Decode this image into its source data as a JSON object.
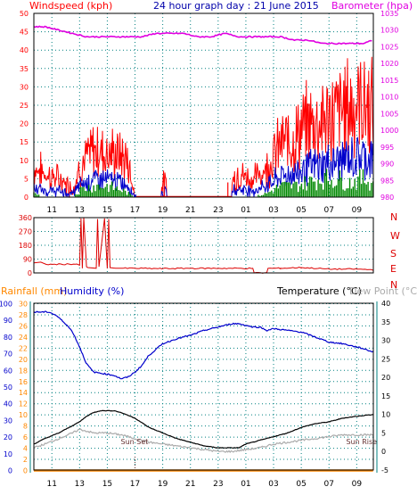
{
  "colors": {
    "wind": "#ff0000",
    "windAvg": "#0000cc",
    "windMin": "#008800",
    "barometer": "#e000e0",
    "direction": "#dd0000",
    "humidity": "#0000cc",
    "temperature": "#000000",
    "dewpoint": "#aaaaaa",
    "rainfall": "#ff8800",
    "axis": "#008080",
    "grid": "#008080",
    "sunText": "#663333"
  },
  "top": {
    "title": "24 hour graph day : 21 June 2015",
    "left_label": "Windspeed (kph)",
    "right_label": "Barometer (hpa)"
  },
  "mid": {
    "compass": [
      "N",
      "W",
      "S",
      "E",
      "N"
    ]
  },
  "bottom": {
    "rain_label": "Rainfall (mm)",
    "hum_label": "Humidity (%)",
    "temp_label": "Temperature (°C)",
    "dew_label": "Dew Point (°C)",
    "sunset": "Sun Set",
    "sunrise": "Sun Rise"
  },
  "chart_data": [
    {
      "type": "line",
      "title": "24 hour graph day : 21 June 2015",
      "x_ticks": [
        "11",
        "13",
        "15",
        "17",
        "19",
        "21",
        "23",
        "01",
        "03",
        "05",
        "07",
        "09"
      ],
      "y_left": {
        "label": "Windspeed (kph)",
        "ticks": [
          0,
          5,
          10,
          15,
          20,
          25,
          30,
          35,
          40,
          45,
          50
        ],
        "range": [
          0,
          50
        ]
      },
      "y_right": {
        "label": "Barometer (hpa)",
        "ticks": [
          980,
          985,
          990,
          995,
          1000,
          1005,
          1010,
          1015,
          1020,
          1025,
          1030,
          1035
        ],
        "range": [
          980,
          1035
        ]
      },
      "grid": true,
      "series": [
        {
          "name": "Barometer (hpa)",
          "axis": "right",
          "x": [
            9.7,
            10.5,
            11.5,
            12.5,
            13.5,
            14.5,
            15.5,
            16.5,
            17.5,
            18.5,
            19.5,
            20.5,
            21.5,
            22.5,
            23.5,
            24.5,
            25.5,
            26.5,
            27.5,
            28.5,
            29.5,
            30.5,
            31.5,
            32.5,
            33.5,
            34.2
          ],
          "values": [
            1031,
            1031,
            1030,
            1029,
            1028,
            1028,
            1028,
            1028,
            1028,
            1029,
            1029,
            1029,
            1028,
            1028,
            1029,
            1028,
            1028,
            1028,
            1028,
            1027,
            1027,
            1026,
            1026,
            1026,
            1026,
            1027
          ]
        },
        {
          "name": "Windspeed gust",
          "axis": "left",
          "x": [
            9.7,
            10.5,
            11.5,
            12.5,
            13.0,
            14.0,
            15.0,
            16.0,
            16.5,
            17.0,
            19.0,
            20.0,
            22.0,
            23.5,
            24.5,
            25.5,
            26.5,
            27.5,
            28.5,
            29.5,
            30.5,
            31.5,
            32.5,
            33.5,
            34.2
          ],
          "values": [
            10,
            8,
            6,
            3,
            10,
            16,
            15,
            14,
            12,
            0,
            5,
            0,
            0,
            3,
            8,
            6,
            10,
            18,
            20,
            25,
            26,
            28,
            31,
            32,
            30
          ]
        },
        {
          "name": "Windspeed average",
          "axis": "left",
          "x": [
            9.7,
            10.5,
            11.5,
            12.5,
            13.0,
            14.0,
            15.0,
            16.0,
            16.5,
            17.0,
            19.0,
            20.0,
            22.0,
            23.5,
            24.5,
            25.5,
            26.5,
            27.5,
            28.5,
            29.5,
            30.5,
            31.5,
            32.5,
            33.5,
            34.2
          ],
          "values": [
            3,
            2,
            2,
            1,
            4,
            6,
            6,
            5,
            4,
            0,
            2,
            0,
            0,
            1,
            3,
            2,
            4,
            7,
            8,
            10,
            11,
            12,
            13,
            14,
            13
          ]
        },
        {
          "name": "Windspeed minimum",
          "axis": "left",
          "x": [
            9.7,
            10.5,
            11.5,
            12.5,
            13.0,
            14.0,
            15.0,
            16.0,
            16.5,
            17.0,
            19.0,
            20.0,
            22.0,
            23.5,
            24.5,
            25.5,
            26.5,
            27.5,
            28.5,
            29.5,
            30.5,
            31.5,
            32.5,
            33.5,
            34.2
          ],
          "values": [
            1,
            0,
            0,
            0,
            2,
            3,
            3,
            2,
            1,
            0,
            0,
            0,
            0,
            0,
            0,
            0,
            1,
            3,
            3,
            4,
            5,
            5,
            4,
            5,
            4
          ]
        }
      ]
    },
    {
      "type": "line",
      "title": "",
      "x_ticks": [],
      "y_left": {
        "ticks": [
          0,
          90,
          180,
          270,
          360
        ],
        "range": [
          0,
          360
        ]
      },
      "y_right": {
        "ticks": [
          "N",
          "W",
          "S",
          "E",
          "N"
        ]
      },
      "grid": true,
      "series": [
        {
          "name": "Wind direction",
          "x": [
            9.7,
            10.2,
            10.6,
            12.8,
            13.0,
            13.1,
            13.2,
            13.3,
            13.5,
            13.6,
            14.2,
            14.3,
            14.4,
            14.8,
            15.0,
            15.1,
            15.2,
            15.6,
            16.0,
            17.0,
            19.0,
            21.0,
            23.0,
            24.5,
            25.5,
            25.6,
            26.5,
            26.6,
            27.5,
            29.0,
            31.0,
            33.0,
            34.2
          ],
          "values": [
            65,
            70,
            55,
            58,
            50,
            355,
            30,
            360,
            40,
            35,
            30,
            350,
            40,
            355,
            30,
            350,
            35,
            30,
            30,
            30,
            28,
            30,
            30,
            30,
            30,
            0,
            0,
            30,
            30,
            35,
            25,
            25,
            20
          ]
        }
      ]
    },
    {
      "type": "line",
      "title": "",
      "x_ticks": [
        "11",
        "13",
        "15",
        "17",
        "19",
        "21",
        "23",
        "01",
        "03",
        "05",
        "07",
        "09"
      ],
      "y_left_outer": {
        "label": "Rainfall (mm)",
        "ticks": [
          0,
          2,
          4,
          6,
          8,
          10,
          12,
          14,
          16,
          18,
          20,
          22,
          24,
          26,
          28,
          30
        ],
        "range": [
          0,
          30
        ]
      },
      "y_left_inner": {
        "label": "Humidity (%)",
        "ticks": [
          0,
          10,
          20,
          30,
          40,
          50,
          60,
          70,
          80,
          90,
          100
        ],
        "range": [
          0,
          100
        ]
      },
      "y_right": {
        "label": "Temperature (°C)",
        "ticks": [
          -5,
          0,
          5,
          10,
          15,
          20,
          25,
          30,
          35,
          40
        ],
        "range": [
          -5,
          40
        ]
      },
      "grid": true,
      "annotations": [
        {
          "text": "Sun Set",
          "x": 17.0
        },
        {
          "text": "Sun Rise",
          "x": 33.2
        }
      ],
      "series": [
        {
          "name": "Humidity (%)",
          "axis": "left_inner",
          "x": [
            9.7,
            10.3,
            10.8,
            11.3,
            12.0,
            12.5,
            13.0,
            13.5,
            14.0,
            14.8,
            15.5,
            16.0,
            16.5,
            17.0,
            17.5,
            18.0,
            19.0,
            20.0,
            21.0,
            22.0,
            23.0,
            24.0,
            24.5,
            25.0,
            25.5,
            26.0,
            26.5,
            27.0,
            28.0,
            29.0,
            30.0,
            31.0,
            32.0,
            33.0,
            33.5,
            34.2
          ],
          "values": [
            95,
            95,
            95,
            93,
            88,
            83,
            74,
            64,
            59,
            58,
            57,
            55,
            56,
            59,
            63,
            69,
            76,
            79,
            81,
            84,
            86,
            88,
            88,
            87,
            86,
            86,
            84,
            85,
            84,
            83,
            80,
            77,
            76,
            74,
            73,
            71
          ]
        },
        {
          "name": "Temperature (°C)",
          "axis": "right",
          "x": [
            9.7,
            10.5,
            11.5,
            12.5,
            13.0,
            13.5,
            14.0,
            14.5,
            15.0,
            15.5,
            16.0,
            17.0,
            18.0,
            19.0,
            20.0,
            21.0,
            22.0,
            23.0,
            24.0,
            24.5,
            25.0,
            26.0,
            27.0,
            28.0,
            29.0,
            30.0,
            31.0,
            32.0,
            33.0,
            34.2
          ],
          "values": [
            2,
            3.5,
            5,
            7,
            8,
            9.5,
            10.5,
            11,
            11,
            11,
            10.5,
            9,
            6.5,
            5,
            3.5,
            2.5,
            1.5,
            1,
            1,
            1,
            2,
            3,
            4,
            5,
            6.5,
            7.5,
            8,
            9,
            9.5,
            10
          ]
        },
        {
          "name": "Dew Point (°C)",
          "axis": "right",
          "x": [
            9.7,
            10.5,
            11.5,
            12.5,
            13.0,
            13.5,
            14.0,
            15.0,
            16.0,
            17.0,
            18.0,
            19.0,
            20.0,
            21.0,
            22.0,
            23.0,
            24.0,
            25.0,
            26.0,
            27.0,
            28.0,
            29.0,
            30.0,
            31.0,
            32.0,
            33.0,
            34.2
          ],
          "values": [
            1,
            2,
            3.5,
            5,
            6,
            5.5,
            5,
            5,
            4.5,
            3.5,
            2.5,
            2,
            1.5,
            1,
            0.5,
            0,
            0,
            0.5,
            1,
            2,
            2.5,
            3,
            3.5,
            4,
            4.5,
            4.5,
            4.5
          ]
        },
        {
          "name": "Rainfall (mm)",
          "axis": "left_outer",
          "x": [
            9.7,
            34.2
          ],
          "values": [
            0,
            0
          ]
        }
      ]
    }
  ]
}
